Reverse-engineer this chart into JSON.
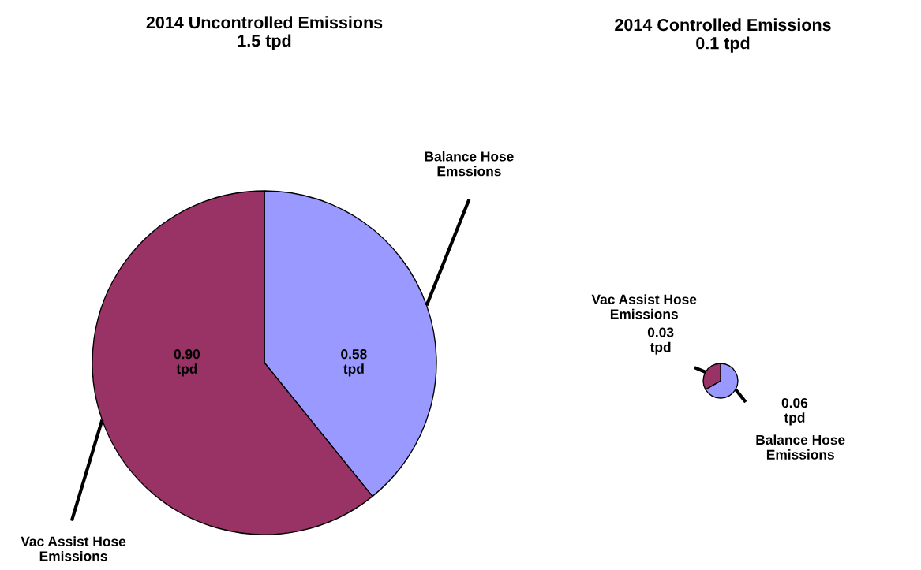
{
  "chart_data": [
    {
      "type": "pie",
      "title": "2014 Uncontrolled Emissions\n1.5 tpd",
      "categories": [
        "Balance Hose\nEmssions",
        "Vac Assist Hose\nEmissions"
      ],
      "values": [
        0.58,
        0.9
      ],
      "colors": [
        "#9999ff",
        "#993366"
      ],
      "value_labels": [
        "0.58\ntpd",
        "0.90\ntpd"
      ]
    },
    {
      "type": "pie",
      "title": "2014 Controlled Emissions\n0.1 tpd",
      "categories": [
        "Balance Hose\nEmissions",
        "Vac Assist Hose\nEmissions"
      ],
      "values": [
        0.06,
        0.03
      ],
      "colors": [
        "#9999ff",
        "#993366"
      ],
      "value_labels": [
        "0.06\ntpd",
        "0.03\ntpd"
      ]
    }
  ]
}
